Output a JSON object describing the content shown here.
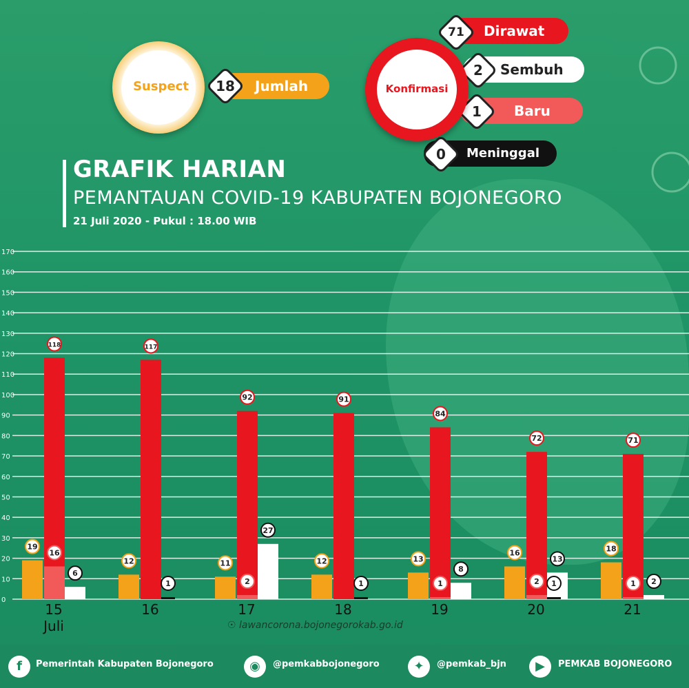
{
  "header": {
    "suspect_label": "Suspect",
    "suspect_count": "18",
    "suspect_total_label": "Jumlah",
    "konfirmasi_label": "Konfirmasi",
    "dirawat_count": "71",
    "dirawat_label": "Dirawat",
    "sembuh_count": "2",
    "sembuh_label": "Sembuh",
    "baru_count": "1",
    "baru_label": "Baru",
    "meninggal_count": "0",
    "meninggal_label": "Meninggal"
  },
  "titles": {
    "main": "GRAFIK HARIAN",
    "sub": "PEMANTAUAN COVID-19 KABUPATEN BOJONEGORO",
    "date": "21 Juli 2020 - Pukul : 18.00 WIB"
  },
  "colors": {
    "orange": "#f5a21b",
    "red": "#e8161f",
    "lightred": "#f25a5a",
    "white": "#ffffff",
    "black": "#111111"
  },
  "chart_data": {
    "type": "bar",
    "categories": [
      "15",
      "16",
      "17",
      "18",
      "19",
      "20",
      "21"
    ],
    "category_sublabels": [
      "Juli",
      "",
      "",
      "",
      "",
      "",
      ""
    ],
    "ylim": [
      0,
      170
    ],
    "yticks": [
      0,
      10,
      20,
      30,
      40,
      50,
      60,
      70,
      80,
      90,
      100,
      110,
      120,
      130,
      140,
      150,
      160,
      170
    ],
    "series": [
      {
        "color": "#f5a21b",
        "values": [
          19,
          12,
          11,
          12,
          13,
          16,
          18
        ]
      },
      {
        "color": "#e8161f",
        "values": [
          118,
          117,
          92,
          91,
          84,
          72,
          71
        ]
      },
      {
        "color": "#f25a5a",
        "values": [
          16,
          0,
          2,
          0,
          1,
          2,
          1
        ]
      },
      {
        "color": "#ffffff",
        "values": [
          6,
          0,
          27,
          0,
          8,
          13,
          2
        ]
      },
      {
        "color": "#111111",
        "values": [
          0,
          1,
          0,
          1,
          0,
          1,
          0
        ]
      }
    ],
    "grid": true
  },
  "footer": {
    "url": "lawancorona.bojonegorokab.go.id",
    "facebook": "Pemerintah Kabupaten Bojonegoro",
    "instagram": "@pemkabbojonegoro",
    "twitter": "@pemkab_bjn",
    "youtube": "PEMKAB BOJONEGORO"
  }
}
